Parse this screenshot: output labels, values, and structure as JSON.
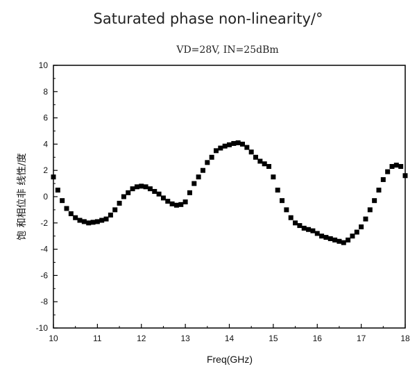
{
  "heading": "Saturated phase non-linearity/°",
  "chart_data": {
    "type": "scatter",
    "title": "VD=28V, IN=25dBm",
    "xlabel": "Freq(GHz)",
    "ylabel": "饱 和相位非 线性/度",
    "xlim": [
      10,
      18
    ],
    "ylim": [
      -10,
      10
    ],
    "x_ticks": [
      10,
      11,
      12,
      13,
      14,
      15,
      16,
      17,
      18
    ],
    "y_ticks": [
      -10,
      -8,
      -6,
      -4,
      -2,
      0,
      2,
      4,
      6,
      8,
      10
    ],
    "grid": false,
    "marker": "square",
    "marker_color": "#000000",
    "series": [
      {
        "x": [
          10.0,
          10.1,
          10.2,
          10.3,
          10.4,
          10.5,
          10.6,
          10.7,
          10.8,
          10.9,
          11.0,
          11.1,
          11.2,
          11.3,
          11.4,
          11.5,
          11.6,
          11.7,
          11.8,
          11.9,
          12.0,
          12.1,
          12.2,
          12.3,
          12.4,
          12.5,
          12.6,
          12.7,
          12.8,
          12.9,
          13.0,
          13.1,
          13.2,
          13.3,
          13.4,
          13.5,
          13.6,
          13.7,
          13.8,
          13.9,
          14.0,
          14.1,
          14.2,
          14.3,
          14.4,
          14.5,
          14.6,
          14.7,
          14.8,
          14.9,
          15.0,
          15.1,
          15.2,
          15.3,
          15.4,
          15.5,
          15.6,
          15.7,
          15.8,
          15.9,
          16.0,
          16.1,
          16.2,
          16.3,
          16.4,
          16.5,
          16.6,
          16.7,
          16.8,
          16.9,
          17.0,
          17.1,
          17.2,
          17.3,
          17.4,
          17.5,
          17.6,
          17.7,
          17.8,
          17.9,
          18.0
        ],
        "y": [
          1.5,
          0.5,
          -0.3,
          -0.9,
          -1.3,
          -1.6,
          -1.8,
          -1.9,
          -2.0,
          -1.95,
          -1.9,
          -1.8,
          -1.7,
          -1.4,
          -1.0,
          -0.5,
          0.0,
          0.3,
          0.6,
          0.75,
          0.8,
          0.75,
          0.6,
          0.4,
          0.2,
          -0.1,
          -0.35,
          -0.55,
          -0.65,
          -0.6,
          -0.4,
          0.3,
          1.0,
          1.5,
          2.0,
          2.6,
          3.0,
          3.5,
          3.7,
          3.85,
          3.95,
          4.05,
          4.1,
          4.0,
          3.75,
          3.4,
          3.0,
          2.7,
          2.5,
          2.3,
          1.5,
          0.5,
          -0.3,
          -1.0,
          -1.6,
          -2.0,
          -2.2,
          -2.4,
          -2.5,
          -2.6,
          -2.8,
          -3.0,
          -3.1,
          -3.2,
          -3.3,
          -3.4,
          -3.5,
          -3.3,
          -3.0,
          -2.7,
          -2.3,
          -1.7,
          -1.0,
          -0.3,
          0.5,
          1.3,
          1.9,
          2.3,
          2.4,
          2.3,
          1.6
        ]
      }
    ]
  }
}
